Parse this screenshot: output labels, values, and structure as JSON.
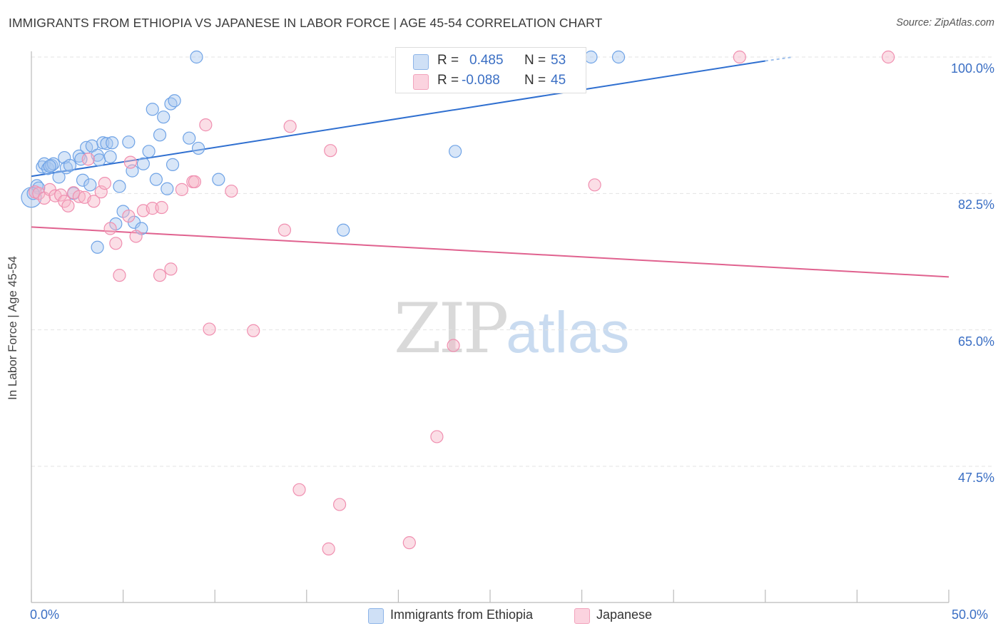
{
  "title": "IMMIGRANTS FROM ETHIOPIA VS JAPANESE IN LABOR FORCE | AGE 45-54 CORRELATION CHART",
  "source": "Source: ZipAtlas.com",
  "watermark": {
    "zip": "ZIP",
    "atlas": "atlas"
  },
  "legend_top": {
    "rows": [
      {
        "r_label": "R =",
        "r_value": "0.485",
        "n_label": "N =",
        "n_value": "53",
        "color": "#a8c8f0"
      },
      {
        "r_label": "R =",
        "r_value": "-0.088",
        "n_label": "N =",
        "n_value": "45",
        "color": "#f7b6c8"
      }
    ]
  },
  "legend_bottom": [
    {
      "label": "Immigrants from Ethiopia",
      "color": "#a8c8f0"
    },
    {
      "label": "Japanese",
      "color": "#f7b6c8"
    }
  ],
  "chart_data": {
    "type": "scatter",
    "title": "IMMIGRANTS FROM ETHIOPIA VS JAPANESE IN LABOR FORCE | AGE 45-54 CORRELATION CHART",
    "xlabel": "",
    "ylabel": "In Labor Force | Age 45-54",
    "xlim": [
      0,
      50
    ],
    "ylim": [
      32.5,
      102
    ],
    "x_tick_labels": [
      "0.0%",
      "50.0%"
    ],
    "y_ticks": [
      47.5,
      65.0,
      82.5,
      100.0
    ],
    "y_tick_labels": [
      "47.5%",
      "65.0%",
      "82.5%",
      "100.0%"
    ],
    "grid": true,
    "series": [
      {
        "name": "Immigrants from Ethiopia",
        "color": "#6fa3e6",
        "fill": "#a8c8f0",
        "trend_color": "#2f6fd0",
        "trend": {
          "x0": 0,
          "y0": 84.7,
          "x1": 40,
          "y1": 99.5,
          "dash_to_x": 41.5,
          "dash_to_y": 100.0
        },
        "points": [
          [
            0.0,
            82.0
          ],
          [
            0.3,
            83.5
          ],
          [
            0.4,
            83.2
          ],
          [
            0.6,
            85.9
          ],
          [
            0.7,
            86.3
          ],
          [
            0.9,
            85.7
          ],
          [
            1.1,
            86.1
          ],
          [
            1.2,
            86.3
          ],
          [
            1.5,
            84.6
          ],
          [
            1.8,
            87.1
          ],
          [
            1.9,
            85.8
          ],
          [
            2.1,
            86.1
          ],
          [
            2.3,
            82.5
          ],
          [
            2.6,
            87.3
          ],
          [
            2.7,
            86.9
          ],
          [
            2.8,
            84.2
          ],
          [
            3.0,
            88.4
          ],
          [
            3.2,
            83.6
          ],
          [
            3.3,
            88.6
          ],
          [
            3.6,
            87.4
          ],
          [
            3.7,
            86.8
          ],
          [
            3.9,
            89.0
          ],
          [
            4.1,
            88.9
          ],
          [
            4.3,
            87.2
          ],
          [
            4.4,
            89.0
          ],
          [
            4.8,
            83.4
          ],
          [
            5.0,
            80.2
          ],
          [
            5.3,
            89.1
          ],
          [
            5.5,
            85.4
          ],
          [
            5.6,
            78.8
          ],
          [
            4.6,
            78.6
          ],
          [
            3.6,
            75.6
          ],
          [
            6.0,
            78.0
          ],
          [
            6.1,
            86.3
          ],
          [
            6.4,
            87.9
          ],
          [
            6.6,
            93.3
          ],
          [
            6.8,
            84.3
          ],
          [
            7.0,
            90.0
          ],
          [
            7.2,
            92.3
          ],
          [
            7.4,
            83.1
          ],
          [
            7.6,
            94.0
          ],
          [
            7.7,
            86.2
          ],
          [
            7.8,
            94.4
          ],
          [
            8.6,
            89.6
          ],
          [
            9.0,
            100.0
          ],
          [
            9.1,
            88.3
          ],
          [
            10.2,
            84.3
          ],
          [
            17.0,
            77.8
          ],
          [
            23.1,
            87.9
          ],
          [
            30.5,
            100.0
          ],
          [
            32.0,
            100.0
          ],
          [
            0.1,
            82.5
          ],
          [
            1.0,
            86.0
          ]
        ]
      },
      {
        "name": "Japanese",
        "color": "#f08fb0",
        "fill": "#f7b6c8",
        "trend_color": "#e0628f",
        "trend": {
          "x0": 0,
          "y0": 78.2,
          "x1": 50,
          "y1": 71.8
        },
        "points": [
          [
            0.2,
            82.7
          ],
          [
            0.4,
            82.5
          ],
          [
            0.7,
            81.9
          ],
          [
            1.0,
            83.0
          ],
          [
            1.3,
            82.2
          ],
          [
            1.6,
            82.3
          ],
          [
            1.8,
            81.5
          ],
          [
            2.0,
            80.9
          ],
          [
            2.3,
            82.6
          ],
          [
            2.6,
            82.1
          ],
          [
            2.9,
            82.0
          ],
          [
            3.1,
            86.9
          ],
          [
            3.4,
            81.5
          ],
          [
            3.8,
            82.7
          ],
          [
            4.0,
            83.8
          ],
          [
            4.3,
            78.0
          ],
          [
            4.6,
            76.1
          ],
          [
            4.8,
            72.0
          ],
          [
            5.3,
            79.6
          ],
          [
            5.4,
            86.5
          ],
          [
            5.7,
            77.0
          ],
          [
            6.1,
            80.3
          ],
          [
            6.6,
            80.6
          ],
          [
            7.0,
            72.0
          ],
          [
            7.1,
            80.7
          ],
          [
            7.6,
            72.8
          ],
          [
            8.2,
            83.0
          ],
          [
            8.8,
            84.0
          ],
          [
            8.9,
            84.0
          ],
          [
            9.5,
            91.3
          ],
          [
            9.7,
            65.1
          ],
          [
            10.9,
            82.8
          ],
          [
            12.1,
            64.9
          ],
          [
            13.8,
            77.8
          ],
          [
            14.1,
            91.1
          ],
          [
            14.6,
            44.5
          ],
          [
            16.3,
            88.0
          ],
          [
            16.8,
            42.6
          ],
          [
            16.2,
            36.9
          ],
          [
            20.6,
            37.7
          ],
          [
            22.1,
            51.3
          ],
          [
            23.0,
            63.0
          ],
          [
            30.7,
            83.6
          ],
          [
            38.6,
            100.0
          ],
          [
            46.7,
            100.0
          ]
        ]
      }
    ]
  }
}
